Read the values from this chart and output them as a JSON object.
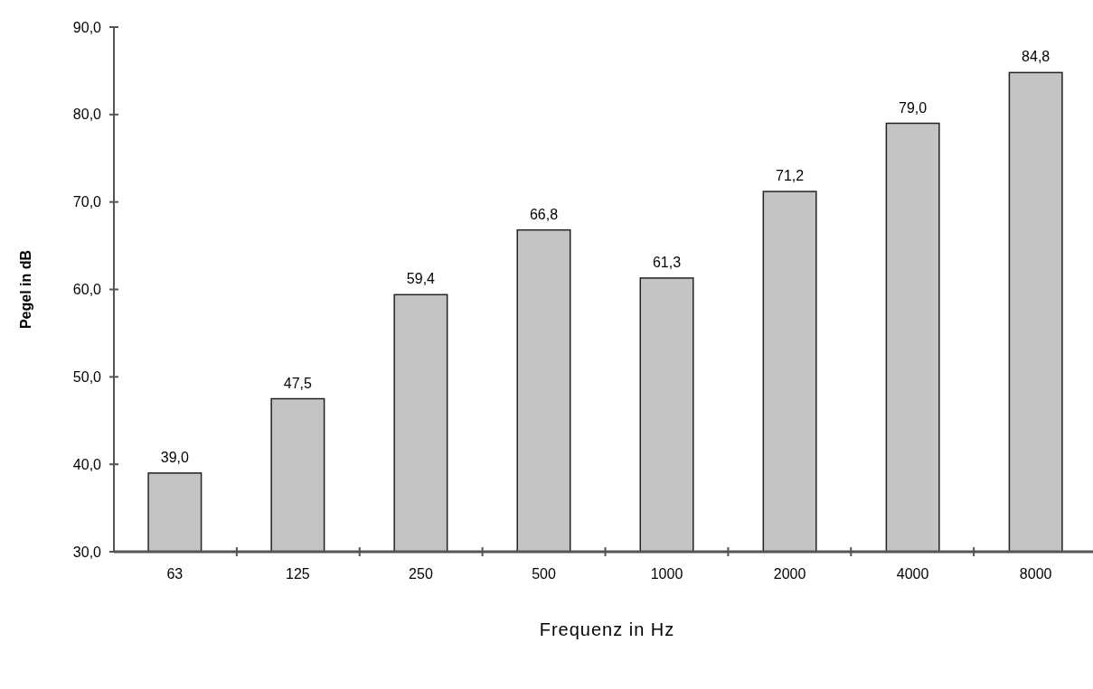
{
  "chart_data": {
    "type": "bar",
    "xlabel": "Frequenz in Hz",
    "ylabel": "Pegel in dB",
    "categories": [
      "63",
      "125",
      "250",
      "500",
      "1000",
      "2000",
      "4000",
      "8000"
    ],
    "values": [
      39.0,
      47.5,
      59.4,
      66.8,
      61.3,
      71.2,
      79.0,
      84.8
    ],
    "value_labels": [
      "39,0",
      "47,5",
      "59,4",
      "66,8",
      "61,3",
      "71,2",
      "79,0",
      "84,8"
    ],
    "color": "#c4c4c4",
    "ylim": [
      30,
      90
    ],
    "yticks": [
      {
        "value": 30,
        "label": "30,0"
      },
      {
        "value": 40,
        "label": "40,0"
      },
      {
        "value": 50,
        "label": "50,0"
      },
      {
        "value": 60,
        "label": "60,0"
      },
      {
        "value": 70,
        "label": "70,0"
      },
      {
        "value": 80,
        "label": "80,0"
      },
      {
        "value": 90,
        "label": "90,0"
      }
    ]
  }
}
